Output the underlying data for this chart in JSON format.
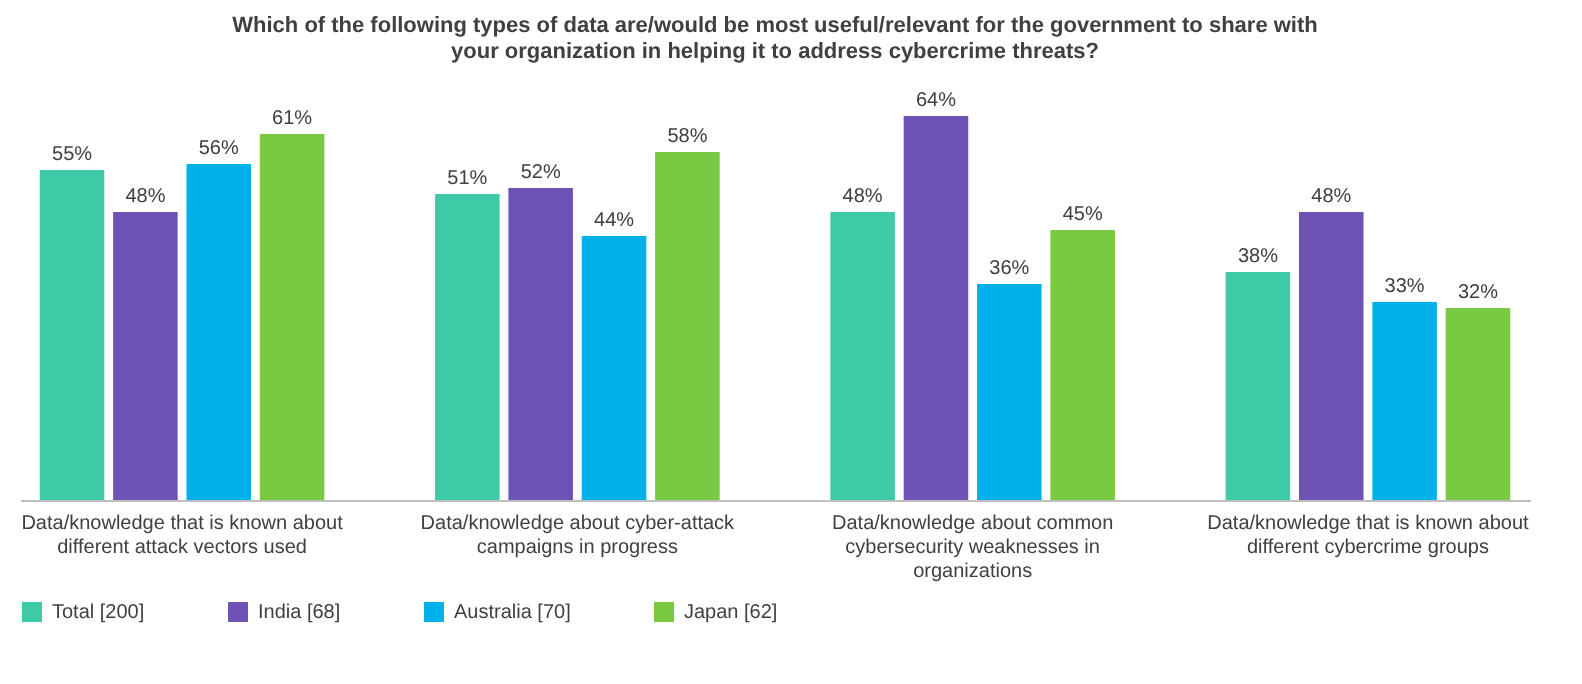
{
  "chart_data": {
    "type": "bar",
    "title": "Which of the following types of data are/would be most useful/relevant for the government to share with your organization in helping it to address cybercrime threats?",
    "categories": [
      "Data/knowledge that is known about different attack vectors used",
      "Data/knowledge about cyber-attack campaigns in progress",
      "Data/knowledge about common cybersecurity weaknesses in organizations",
      "Data/knowledge that is known about different cybercrime groups"
    ],
    "series": [
      {
        "name": "Total [200]",
        "color": "#3ec9a7",
        "values": [
          55,
          51,
          48,
          38
        ],
        "value_labels": [
          "55%",
          "51%",
          "48%",
          "38%"
        ]
      },
      {
        "name": "India [68]",
        "color": "#6f52b5",
        "values": [
          48,
          52,
          64,
          48
        ],
        "value_labels": [
          "48%",
          "52%",
          "64%",
          "48%"
        ]
      },
      {
        "name": "Australia [70]",
        "color": "#00b0e8",
        "values": [
          56,
          44,
          36,
          33
        ],
        "value_labels": [
          "56%",
          "44%",
          "36%",
          "33%"
        ]
      },
      {
        "name": "Japan [62]",
        "color": "#7ac943",
        "values": [
          61,
          58,
          45,
          32
        ],
        "value_labels": [
          "61%",
          "58%",
          "45%",
          "32%"
        ]
      }
    ],
    "legend": "bottom",
    "grid": false
  }
}
